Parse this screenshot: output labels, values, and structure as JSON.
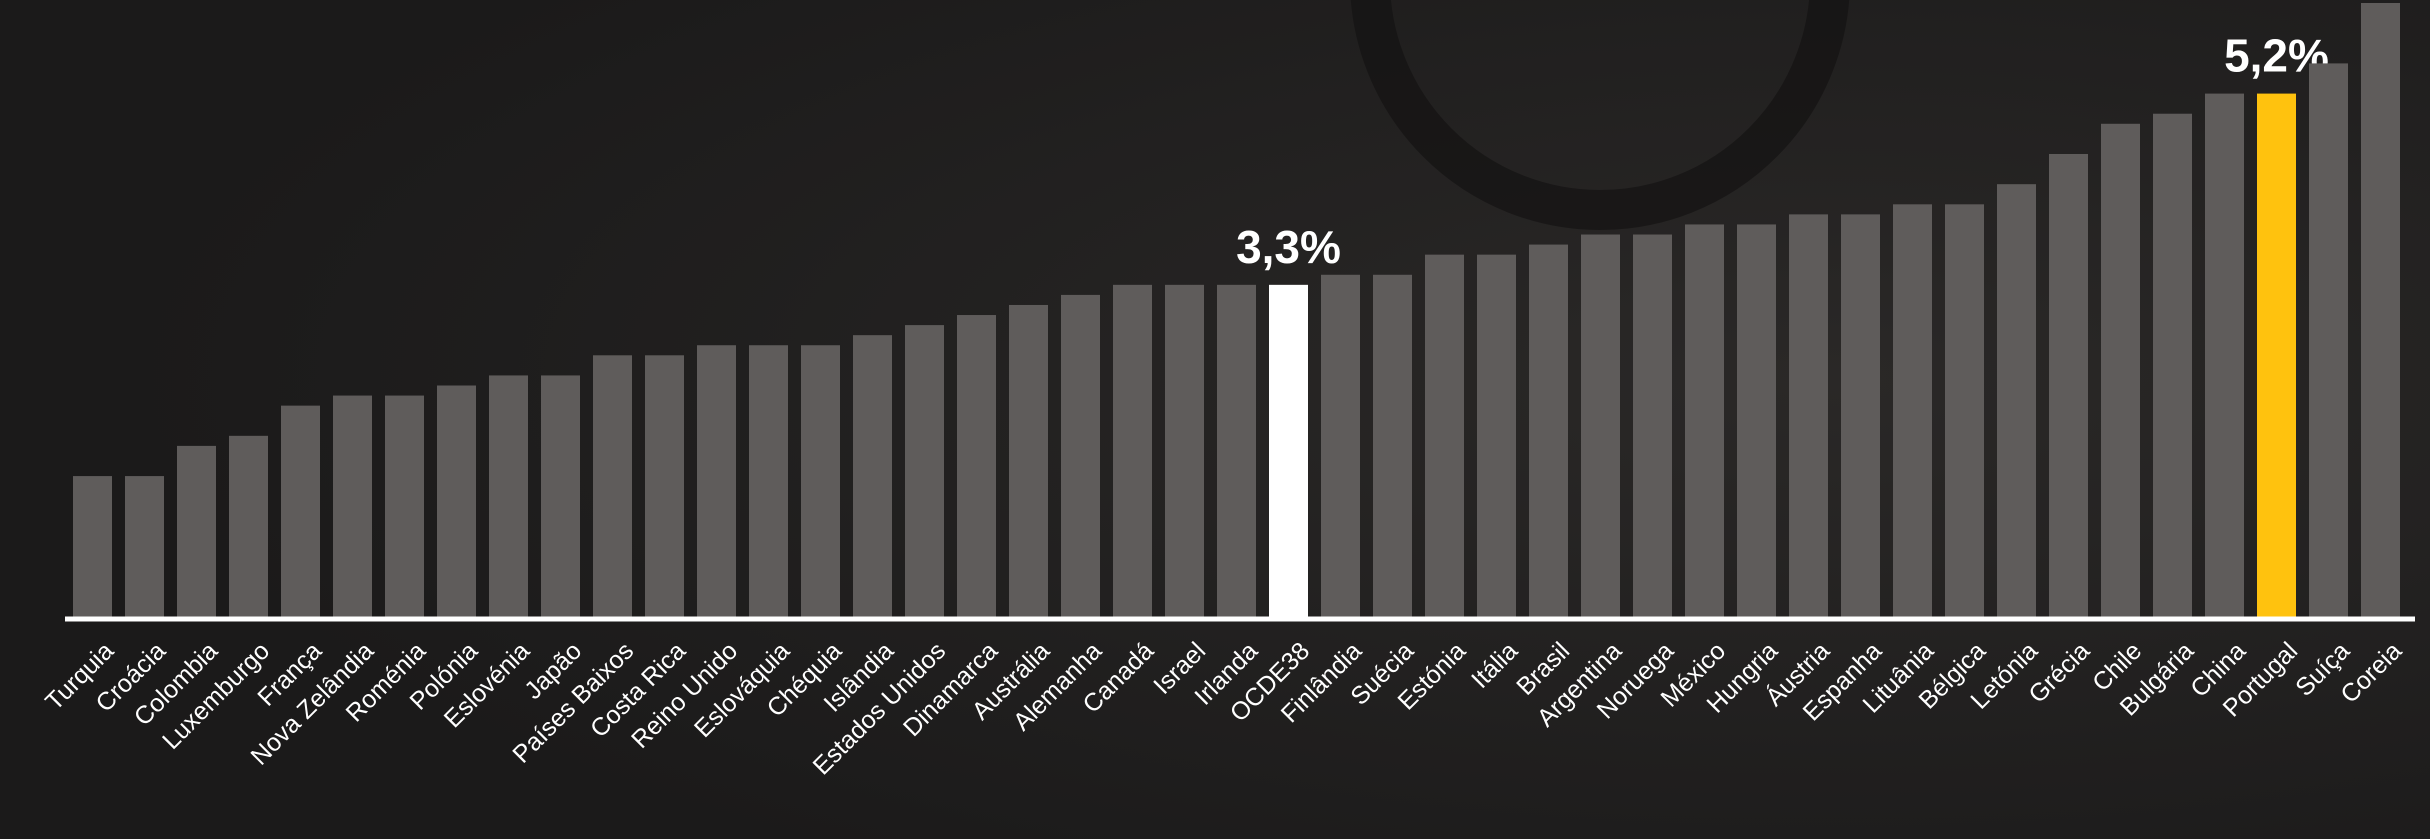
{
  "chart_data": {
    "type": "bar",
    "categories": [
      "Turquia",
      "Croácia",
      "Colombia",
      "Luxemburgo",
      "França",
      "Nova Zelândia",
      "Roménia",
      "Polónia",
      "Eslovénia",
      "Japão",
      "Países Baixos",
      "Costa Rica",
      "Reino Unido",
      "Eslováquia",
      "Chéquia",
      "Islândia",
      "Estados Unidos",
      "Dinamarca",
      "Austrália",
      "Alemanha",
      "Canadá",
      "Israel",
      "Irlanda",
      "OCDE38",
      "Finlândia",
      "Suécia",
      "Estónia",
      "Itália",
      "Brasil",
      "Argentina",
      "Noruega",
      "México",
      "Hungria",
      "Áustria",
      "Espanha",
      "Lituânia",
      "Bélgica",
      "Letónia",
      "Grécia",
      "Chile",
      "Bulgária",
      "China",
      "Portugal",
      "Suíça",
      "Coreia"
    ],
    "values": [
      1.4,
      1.4,
      1.7,
      1.8,
      2.1,
      2.2,
      2.2,
      2.3,
      2.4,
      2.4,
      2.6,
      2.6,
      2.7,
      2.7,
      2.7,
      2.8,
      2.9,
      3.0,
      3.1,
      3.2,
      3.3,
      3.3,
      3.3,
      3.3,
      3.4,
      3.4,
      3.6,
      3.6,
      3.7,
      3.8,
      3.8,
      3.9,
      3.9,
      4.0,
      4.0,
      4.1,
      4.1,
      4.3,
      4.6,
      4.9,
      5.0,
      5.2,
      5.2,
      5.5,
      6.1
    ],
    "value_labels": [
      null,
      null,
      null,
      null,
      null,
      null,
      null,
      null,
      null,
      null,
      null,
      null,
      null,
      null,
      null,
      null,
      null,
      null,
      null,
      null,
      null,
      null,
      null,
      "3,3%",
      null,
      null,
      null,
      null,
      null,
      null,
      null,
      null,
      null,
      null,
      null,
      null,
      null,
      null,
      null,
      null,
      null,
      null,
      "5,2%",
      null,
      null
    ],
    "colors": [
      "#5f5c5b",
      "#5f5c5b",
      "#5f5c5b",
      "#5f5c5b",
      "#5f5c5b",
      "#5f5c5b",
      "#5f5c5b",
      "#5f5c5b",
      "#5f5c5b",
      "#5f5c5b",
      "#5f5c5b",
      "#5f5c5b",
      "#5f5c5b",
      "#5f5c5b",
      "#5f5c5b",
      "#5f5c5b",
      "#5f5c5b",
      "#5f5c5b",
      "#5f5c5b",
      "#5f5c5b",
      "#5f5c5b",
      "#5f5c5b",
      "#5f5c5b",
      "#ffffff",
      "#5f5c5b",
      "#5f5c5b",
      "#5f5c5b",
      "#5f5c5b",
      "#5f5c5b",
      "#5f5c5b",
      "#5f5c5b",
      "#5f5c5b",
      "#5f5c5b",
      "#5f5c5b",
      "#5f5c5b",
      "#5f5c5b",
      "#5f5c5b",
      "#5f5c5b",
      "#5f5c5b",
      "#5f5c5b",
      "#5f5c5b",
      "#5f5c5b",
      "#ffc20e",
      "#5f5c5b",
      "#5f5c5b"
    ],
    "ylim": [
      0,
      6.1
    ]
  }
}
